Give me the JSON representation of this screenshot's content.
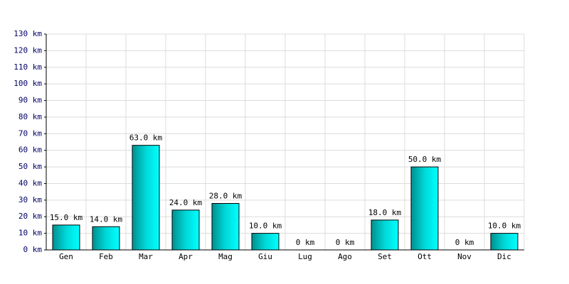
{
  "chart_data": {
    "type": "bar",
    "categories": [
      "Gen",
      "Feb",
      "Mar",
      "Apr",
      "Mag",
      "Giu",
      "Lug",
      "Ago",
      "Set",
      "Ott",
      "Nov",
      "Dic"
    ],
    "values": [
      15,
      14,
      63,
      24,
      28,
      10,
      0,
      0,
      18,
      50,
      0,
      10
    ],
    "value_labels": [
      "15.0 km",
      "14.0 km",
      "63.0 km",
      "24.0 km",
      "28.0 km",
      "10.0 km",
      "0 km",
      "0 km",
      "18.0 km",
      "50.0 km",
      "0 km",
      "10.0 km"
    ],
    "color": "#00cccc",
    "ylim": [
      0,
      130
    ],
    "yticks": [
      {
        "value": 0,
        "label": "0 km"
      },
      {
        "value": 10,
        "label": "10 km"
      },
      {
        "value": 20,
        "label": "20 km"
      },
      {
        "value": 30,
        "label": "30 km"
      },
      {
        "value": 40,
        "label": "40 km"
      },
      {
        "value": 50,
        "label": "50 km"
      },
      {
        "value": 60,
        "label": "60 km"
      },
      {
        "value": 70,
        "label": "70 km"
      },
      {
        "value": 80,
        "label": "80 km"
      },
      {
        "value": 90,
        "label": "90 km"
      },
      {
        "value": 100,
        "label": "100 km"
      },
      {
        "value": 110,
        "label": "110 km"
      },
      {
        "value": 120,
        "label": "120 km"
      },
      {
        "value": 130,
        "label": "130 km"
      }
    ],
    "grid": true
  }
}
